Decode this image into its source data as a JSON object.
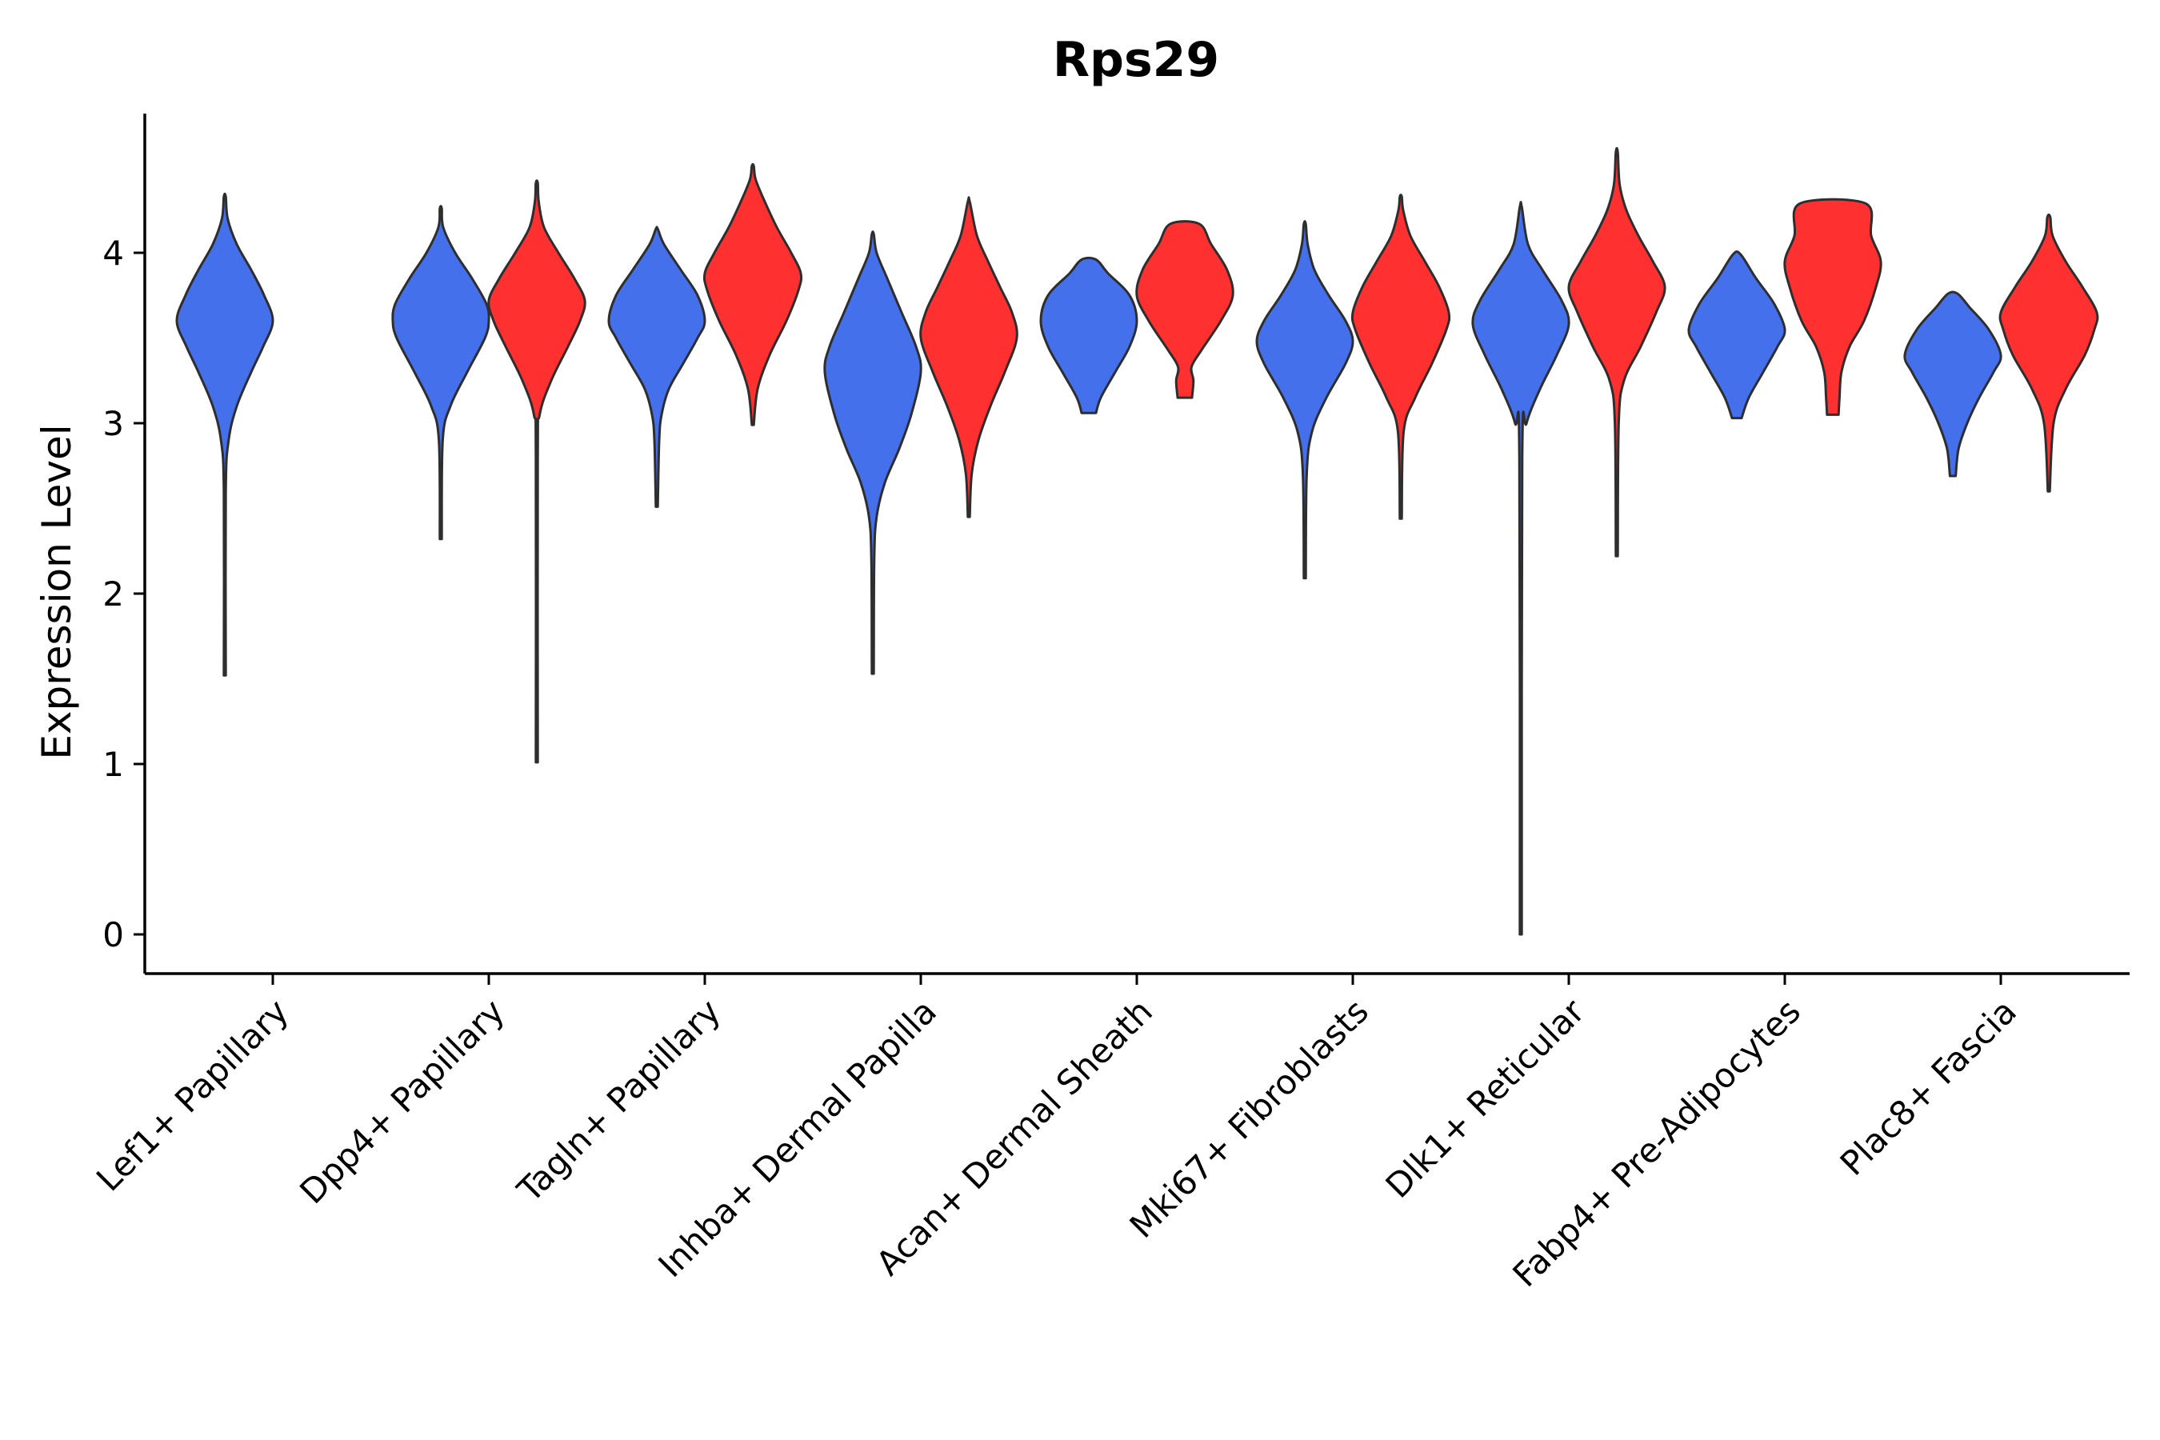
{
  "chart_data": {
    "type": "violin",
    "title": "Rps29",
    "xlabel": "",
    "ylabel": "Expression Level",
    "ylim": [
      -0.23,
      4.83
    ],
    "yticks": [
      0,
      1,
      2,
      3,
      4
    ],
    "grid": false,
    "legend": "none",
    "colors": {
      "group_a": "#4570EB",
      "group_b": "#FF3030",
      "outline": "#2E2E2E"
    },
    "categories": [
      "Lef1+ Papillary",
      "Dpp4+ Papillary",
      "Tagln+ Papillary",
      "Inhba+ Dermal Papilla",
      "Acan+ Dermal Sheath",
      "Mki67+ Fibroblasts",
      "Dlk1+ Reticular",
      "Fabp4+ Pre-Adipocytes",
      "Plac8+ Fascia"
    ],
    "series": [
      {
        "name": "group_a",
        "color": "#4570EB",
        "violins": [
          {
            "category": "Lef1+ Papillary",
            "min": 1.52,
            "max": 4.33,
            "profile": [
              [
                1.52,
                0.02
              ],
              [
                2.6,
                0.02
              ],
              [
                2.9,
                0.08
              ],
              [
                3.1,
                0.25
              ],
              [
                3.3,
                0.55
              ],
              [
                3.45,
                0.8
              ],
              [
                3.6,
                1.0
              ],
              [
                3.75,
                0.82
              ],
              [
                3.9,
                0.55
              ],
              [
                4.05,
                0.25
              ],
              [
                4.2,
                0.06
              ],
              [
                4.33,
                0.02
              ]
            ]
          },
          {
            "category": "Dpp4+ Papillary",
            "min": 2.32,
            "max": 4.26,
            "profile": [
              [
                2.32,
                0.02
              ],
              [
                2.9,
                0.04
              ],
              [
                3.1,
                0.2
              ],
              [
                3.3,
                0.55
              ],
              [
                3.5,
                0.92
              ],
              [
                3.6,
                1.0
              ],
              [
                3.7,
                0.95
              ],
              [
                3.85,
                0.65
              ],
              [
                4.0,
                0.3
              ],
              [
                4.15,
                0.05
              ],
              [
                4.26,
                0.02
              ]
            ]
          },
          {
            "category": "Tagln+ Papillary",
            "min": 2.51,
            "max": 4.14,
            "profile": [
              [
                2.51,
                0.02
              ],
              [
                2.9,
                0.05
              ],
              [
                3.05,
                0.1
              ],
              [
                3.2,
                0.25
              ],
              [
                3.35,
                0.55
              ],
              [
                3.5,
                0.85
              ],
              [
                3.6,
                1.0
              ],
              [
                3.75,
                0.85
              ],
              [
                3.9,
                0.5
              ],
              [
                4.05,
                0.15
              ],
              [
                4.14,
                0.02
              ]
            ]
          },
          {
            "category": "Inhba+ Dermal Papilla",
            "min": 1.53,
            "max": 4.11,
            "profile": [
              [
                1.53,
                0.02
              ],
              [
                2.2,
                0.03
              ],
              [
                2.45,
                0.08
              ],
              [
                2.65,
                0.25
              ],
              [
                2.85,
                0.55
              ],
              [
                3.05,
                0.8
              ],
              [
                3.3,
                1.0
              ],
              [
                3.45,
                0.9
              ],
              [
                3.65,
                0.6
              ],
              [
                3.85,
                0.3
              ],
              [
                4.0,
                0.08
              ],
              [
                4.11,
                0.02
              ]
            ]
          },
          {
            "category": "Acan+ Dermal Sheath",
            "min": 3.06,
            "max": 3.96,
            "profile": [
              [
                3.06,
                0.15
              ],
              [
                3.15,
                0.25
              ],
              [
                3.3,
                0.55
              ],
              [
                3.45,
                0.85
              ],
              [
                3.6,
                1.0
              ],
              [
                3.75,
                0.85
              ],
              [
                3.88,
                0.4
              ],
              [
                3.96,
                0.15
              ]
            ]
          },
          {
            "category": "Mki67+ Fibroblasts",
            "min": 2.09,
            "max": 4.17,
            "profile": [
              [
                2.09,
                0.02
              ],
              [
                2.7,
                0.04
              ],
              [
                2.95,
                0.15
              ],
              [
                3.15,
                0.45
              ],
              [
                3.35,
                0.85
              ],
              [
                3.48,
                1.0
              ],
              [
                3.6,
                0.85
              ],
              [
                3.75,
                0.5
              ],
              [
                3.9,
                0.2
              ],
              [
                4.05,
                0.06
              ],
              [
                4.17,
                0.02
              ]
            ]
          },
          {
            "category": "Dlk1+ Reticular",
            "min": 0.0,
            "max": 4.27,
            "profile": [
              [
                0.0,
                0.02
              ],
              [
                2.8,
                0.03
              ],
              [
                3.0,
                0.12
              ],
              [
                3.2,
                0.4
              ],
              [
                3.4,
                0.75
              ],
              [
                3.58,
                1.0
              ],
              [
                3.72,
                0.85
              ],
              [
                3.9,
                0.45
              ],
              [
                4.05,
                0.15
              ],
              [
                4.27,
                0.02
              ]
            ]
          },
          {
            "category": "Fabp4+ Pre-Adipocytes",
            "min": 3.03,
            "max": 3.99,
            "profile": [
              [
                3.03,
                0.1
              ],
              [
                3.15,
                0.25
              ],
              [
                3.3,
                0.55
              ],
              [
                3.45,
                0.85
              ],
              [
                3.55,
                1.0
              ],
              [
                3.7,
                0.78
              ],
              [
                3.85,
                0.4
              ],
              [
                3.99,
                0.08
              ]
            ]
          },
          {
            "category": "Plac8+ Fascia",
            "min": 2.69,
            "max": 3.76,
            "profile": [
              [
                2.69,
                0.06
              ],
              [
                2.85,
                0.12
              ],
              [
                3.0,
                0.3
              ],
              [
                3.15,
                0.55
              ],
              [
                3.3,
                0.85
              ],
              [
                3.4,
                1.0
              ],
              [
                3.55,
                0.75
              ],
              [
                3.68,
                0.35
              ],
              [
                3.76,
                0.1
              ]
            ]
          }
        ]
      },
      {
        "name": "group_b",
        "color": "#FF3030",
        "violins": [
          {
            "category": "Dpp4+ Papillary",
            "min": 1.01,
            "max": 4.41,
            "profile": [
              [
                1.01,
                0.02
              ],
              [
                2.8,
                0.02
              ],
              [
                3.05,
                0.06
              ],
              [
                3.25,
                0.3
              ],
              [
                3.45,
                0.65
              ],
              [
                3.6,
                0.9
              ],
              [
                3.72,
                1.0
              ],
              [
                3.85,
                0.78
              ],
              [
                4.0,
                0.45
              ],
              [
                4.15,
                0.15
              ],
              [
                4.3,
                0.04
              ],
              [
                4.41,
                0.02
              ]
            ]
          },
          {
            "category": "Tagln+ Papillary",
            "min": 2.99,
            "max": 4.51,
            "profile": [
              [
                2.99,
                0.02
              ],
              [
                3.2,
                0.1
              ],
              [
                3.4,
                0.35
              ],
              [
                3.6,
                0.7
              ],
              [
                3.78,
                0.95
              ],
              [
                3.88,
                1.0
              ],
              [
                4.0,
                0.8
              ],
              [
                4.15,
                0.5
              ],
              [
                4.3,
                0.25
              ],
              [
                4.43,
                0.06
              ],
              [
                4.51,
                0.02
              ]
            ]
          },
          {
            "category": "Inhba+ Dermal Papilla",
            "min": 2.45,
            "max": 4.3,
            "profile": [
              [
                2.45,
                0.02
              ],
              [
                2.7,
                0.06
              ],
              [
                2.9,
                0.2
              ],
              [
                3.1,
                0.45
              ],
              [
                3.3,
                0.75
              ],
              [
                3.5,
                1.0
              ],
              [
                3.65,
                0.9
              ],
              [
                3.8,
                0.65
              ],
              [
                3.95,
                0.4
              ],
              [
                4.1,
                0.17
              ],
              [
                4.3,
                0.02
              ]
            ]
          },
          {
            "category": "Acan+ Dermal Sheath",
            "min": 3.15,
            "max": 4.17,
            "profile": [
              [
                3.15,
                0.15
              ],
              [
                3.25,
                0.18
              ],
              [
                3.33,
                0.14
              ],
              [
                3.43,
                0.35
              ],
              [
                3.6,
                0.75
              ],
              [
                3.75,
                1.0
              ],
              [
                3.9,
                0.88
              ],
              [
                4.05,
                0.55
              ],
              [
                4.17,
                0.3
              ]
            ]
          },
          {
            "category": "Mki67+ Fibroblasts",
            "min": 2.44,
            "max": 4.33,
            "profile": [
              [
                2.44,
                0.02
              ],
              [
                2.95,
                0.06
              ],
              [
                3.15,
                0.3
              ],
              [
                3.35,
                0.65
              ],
              [
                3.55,
                0.95
              ],
              [
                3.65,
                1.0
              ],
              [
                3.8,
                0.8
              ],
              [
                3.95,
                0.5
              ],
              [
                4.1,
                0.2
              ],
              [
                4.25,
                0.05
              ],
              [
                4.33,
                0.02
              ]
            ]
          },
          {
            "category": "Dlk1+ Reticular",
            "min": 2.22,
            "max": 4.59,
            "profile": [
              [
                2.22,
                0.02
              ],
              [
                3.0,
                0.04
              ],
              [
                3.25,
                0.15
              ],
              [
                3.45,
                0.5
              ],
              [
                3.65,
                0.82
              ],
              [
                3.8,
                1.0
              ],
              [
                3.95,
                0.75
              ],
              [
                4.1,
                0.45
              ],
              [
                4.25,
                0.2
              ],
              [
                4.4,
                0.06
              ],
              [
                4.59,
                0.02
              ]
            ]
          },
          {
            "category": "Fabp4+ Pre-Adipocytes",
            "min": 3.05,
            "max": 4.29,
            "profile": [
              [
                3.05,
                0.12
              ],
              [
                3.15,
                0.14
              ],
              [
                3.3,
                0.18
              ],
              [
                3.45,
                0.35
              ],
              [
                3.6,
                0.65
              ],
              [
                3.8,
                0.9
              ],
              [
                3.95,
                1.0
              ],
              [
                4.1,
                0.8
              ],
              [
                4.29,
                0.68
              ]
            ]
          },
          {
            "category": "Plac8+ Fascia",
            "min": 2.6,
            "max": 4.21,
            "profile": [
              [
                2.6,
                0.02
              ],
              [
                3.0,
                0.1
              ],
              [
                3.2,
                0.35
              ],
              [
                3.4,
                0.75
              ],
              [
                3.55,
                0.95
              ],
              [
                3.65,
                1.0
              ],
              [
                3.8,
                0.7
              ],
              [
                3.95,
                0.35
              ],
              [
                4.1,
                0.08
              ],
              [
                4.21,
                0.03
              ]
            ]
          }
        ]
      }
    ]
  }
}
